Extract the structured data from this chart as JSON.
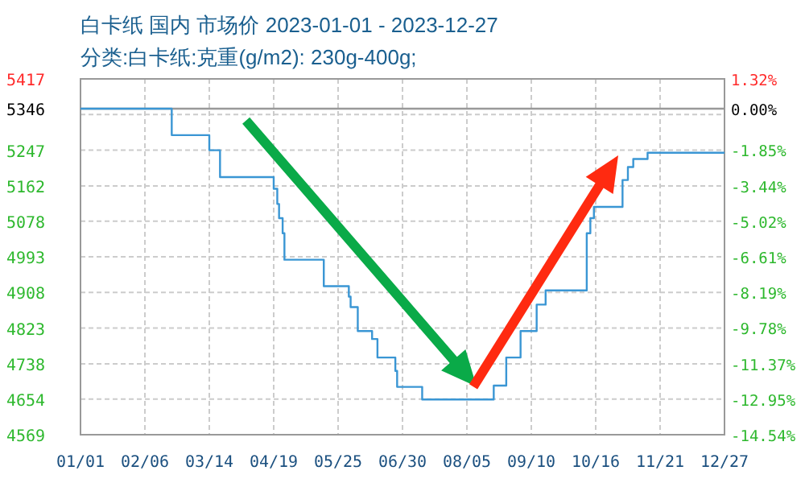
{
  "chart_data": {
    "type": "step",
    "title": "白卡纸 国内 市场价 2023-01-01 - 2023-12-27",
    "subtitle": "分类:白卡纸:克重(g/m2): 230g-400g;",
    "x": [
      "2023-01-01",
      "2023-02-21",
      "2023-03-14",
      "2023-03-20",
      "2023-04-19",
      "2023-04-21",
      "2023-04-22",
      "2023-04-24",
      "2023-04-25",
      "2023-05-17",
      "2023-05-31",
      "2023-06-01",
      "2023-06-05",
      "2023-06-13",
      "2023-06-16",
      "2023-06-26",
      "2023-06-27",
      "2023-07-11",
      "2023-08-20",
      "2023-08-27",
      "2023-09-04",
      "2023-09-13",
      "2023-09-18",
      "2023-10-11",
      "2023-10-13",
      "2023-10-15",
      "2023-10-31",
      "2023-11-03",
      "2023-11-06",
      "2023-11-14",
      "2023-12-27"
    ],
    "series": [
      {
        "color": "#3a96d4",
        "values": [
          5346,
          5283,
          5247,
          5183,
          5155,
          5119,
          5085,
          5049,
          4986,
          4923,
          4898,
          4873,
          4816,
          4797,
          4753,
          4721,
          4683,
          4653,
          4686,
          4753,
          4816,
          4879,
          4913,
          5049,
          5085,
          5112,
          5176,
          5207,
          5226,
          5241,
          5241
        ]
      }
    ],
    "xlim": [
      "2023-01-01",
      "2023-12-27"
    ],
    "xticks": [
      {
        "value": "2023-01-01",
        "label": "01/01"
      },
      {
        "value": "2023-02-06",
        "label": "02/06"
      },
      {
        "value": "2023-03-14",
        "label": "03/14"
      },
      {
        "value": "2023-04-19",
        "label": "04/19"
      },
      {
        "value": "2023-05-25",
        "label": "05/25"
      },
      {
        "value": "2023-06-30",
        "label": "06/30"
      },
      {
        "value": "2023-08-05",
        "label": "08/05"
      },
      {
        "value": "2023-09-10",
        "label": "09/10"
      },
      {
        "value": "2023-10-16",
        "label": "10/16"
      },
      {
        "value": "2023-11-21",
        "label": "11/21"
      },
      {
        "value": "2023-12-27",
        "label": "12/27"
      }
    ],
    "ylim": [
      4569,
      5417
    ],
    "yticks": [
      4569,
      4654,
      4738,
      4823,
      4908,
      4993,
      5078,
      5162,
      5247,
      {
        "value": 5332,
        "label": null
      },
      5417
    ],
    "y2lim": [
      -14.54,
      1.32
    ],
    "y2ticks": [
      {
        "value": -14.54,
        "label": "-14.54%"
      },
      {
        "value": -12.95,
        "label": "-12.95%"
      },
      {
        "value": -11.37,
        "label": "-11.37%"
      },
      {
        "value": -9.78,
        "label": "-9.78%"
      },
      {
        "value": -8.19,
        "label": "-8.19%"
      },
      {
        "value": -6.61,
        "label": "-6.61%"
      },
      {
        "value": -5.02,
        "label": "-5.02%"
      },
      {
        "value": -3.44,
        "label": "-3.44%"
      },
      {
        "value": -1.85,
        "label": "-1.85%"
      },
      {
        "value": 0,
        "label": "0.00%"
      },
      {
        "value": 1.32,
        "label": "1.32%"
      }
    ],
    "ref_lines": [
      {
        "axis": "y",
        "value": 5346,
        "label": "5346",
        "color": "#999999"
      }
    ],
    "grid": true,
    "marker": "none",
    "line_style": "solid"
  }
}
